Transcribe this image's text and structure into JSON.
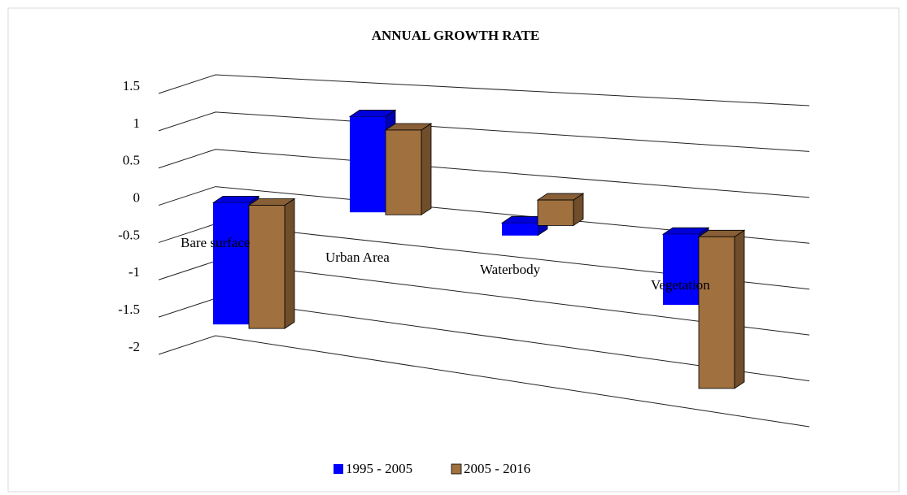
{
  "chart_data": {
    "type": "bar3d",
    "title": "ANNUAL GROWTH RATE",
    "categories": [
      "Bare surface",
      "Urban Area",
      "Waterbody",
      "Vegetation"
    ],
    "series": [
      {
        "name": "1995 - 2005",
        "color": "#0000ff",
        "values": [
          -1.6,
          1.2,
          -0.15,
          -0.8
        ]
      },
      {
        "name": "2005 - 2016",
        "color": "#a0703f",
        "values": [
          -1.6,
          1.05,
          0.3,
          -1.7
        ]
      }
    ],
    "ylim": [
      -2,
      1.5
    ],
    "yticks": [
      1.5,
      1,
      0.5,
      0,
      -0.5,
      -1,
      -1.5,
      -2
    ],
    "grid": true,
    "legend": "bottom"
  }
}
